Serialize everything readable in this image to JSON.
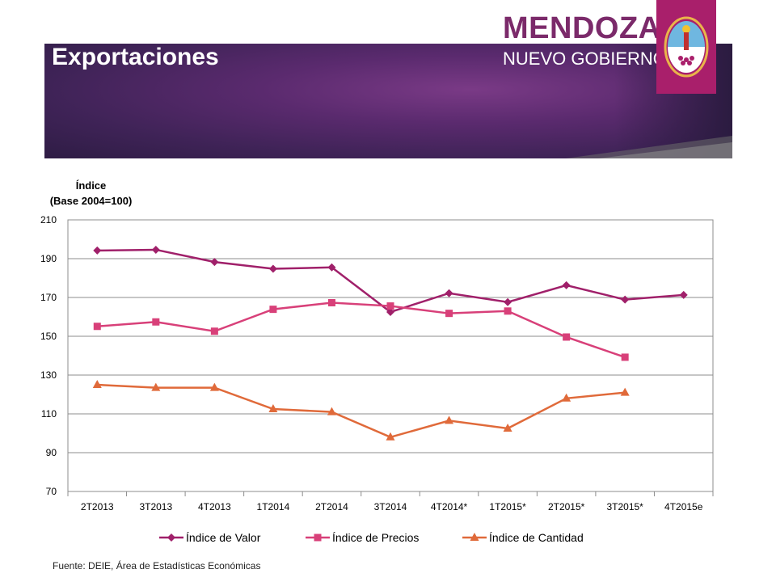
{
  "slide": {
    "title": "Exportaciones",
    "source": "Fuente: DEIE, Área de Estadísticas Económicas"
  },
  "logo": {
    "line1": "MENDOZA",
    "line2": "NUEVO GOBIERNO",
    "brand_color": "#a91f6b",
    "icon": "provincial-shield-icon"
  },
  "chart_data": {
    "type": "line",
    "ylabel": "Índice (Base 2004=100)",
    "ylabel_line1": "Índice",
    "ylabel_line2": "(Base 2004=100)",
    "categories": [
      "2T2013",
      "3T2013",
      "4T2013",
      "1T2014",
      "2T2014",
      "3T2014",
      "4T2014*",
      "1T2015*",
      "2T2015*",
      "3T2015*",
      "4T2015e"
    ],
    "ylim": [
      70,
      210
    ],
    "yticks": [
      70,
      90,
      110,
      130,
      150,
      170,
      190,
      210
    ],
    "grid": true,
    "legend_position": "bottom",
    "series": [
      {
        "name": "Índice de Valor",
        "color": "#a0206a",
        "marker": "diamond",
        "values": [
          194.2,
          194.6,
          188.3,
          184.8,
          185.5,
          162.5,
          172.2,
          167.6,
          176.3,
          168.9,
          171.3
        ]
      },
      {
        "name": "Índice de Precios",
        "color": "#d84079",
        "marker": "square",
        "values": [
          155.1,
          157.4,
          152.6,
          163.9,
          167.3,
          165.6,
          161.8,
          163.0,
          149.6,
          139.2,
          null
        ]
      },
      {
        "name": "Índice de Cantidad",
        "color": "#e06a3a",
        "marker": "triangle",
        "values": [
          125.0,
          123.5,
          123.5,
          112.5,
          111.0,
          98.0,
          106.5,
          102.5,
          118.0,
          121.0,
          null
        ]
      }
    ]
  }
}
